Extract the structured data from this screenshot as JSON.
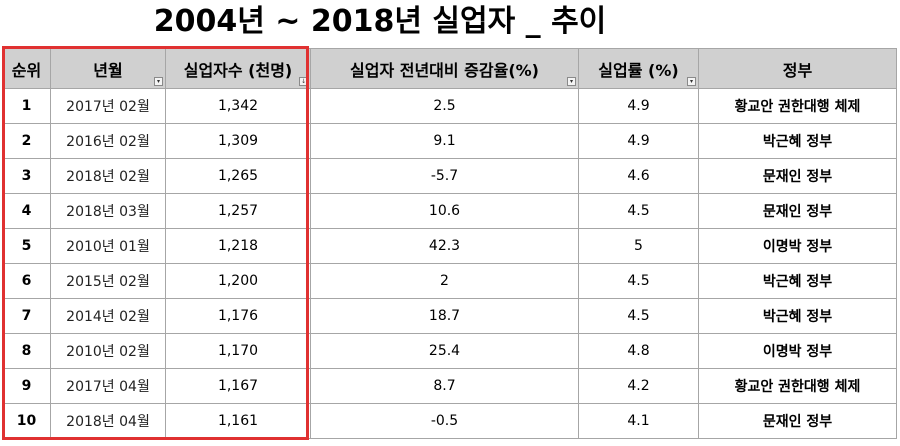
{
  "title": "2004년 ~ 2018년 실업자 _ 추이",
  "columns": [
    "순위",
    "년월",
    "실업자수 (천명)",
    "실업자 전년대비 증감율(%)",
    "실업률 (%)",
    "정부"
  ],
  "rows": [
    {
      "rank": "1",
      "ym": "2017년 02월",
      "count": "1,342",
      "change": "2.5",
      "rate": "4.9",
      "gov": "황교안 권한대행 체제"
    },
    {
      "rank": "2",
      "ym": "2016년 02월",
      "count": "1,309",
      "change": "9.1",
      "rate": "4.9",
      "gov": "박근혜 정부"
    },
    {
      "rank": "3",
      "ym": "2018년 02월",
      "count": "1,265",
      "change": "-5.7",
      "rate": "4.6",
      "gov": "문재인 정부"
    },
    {
      "rank": "4",
      "ym": "2018년 03월",
      "count": "1,257",
      "change": "10.6",
      "rate": "4.5",
      "gov": "문재인 정부"
    },
    {
      "rank": "5",
      "ym": "2010년 01월",
      "count": "1,218",
      "change": "42.3",
      "rate": "5",
      "gov": "이명박 정부"
    },
    {
      "rank": "6",
      "ym": "2015년 02월",
      "count": "1,200",
      "change": "2",
      "rate": "4.5",
      "gov": "박근혜 정부"
    },
    {
      "rank": "7",
      "ym": "2014년 02월",
      "count": "1,176",
      "change": "18.7",
      "rate": "4.5",
      "gov": "박근혜 정부"
    },
    {
      "rank": "8",
      "ym": "2010년 02월",
      "count": "1,170",
      "change": "25.4",
      "rate": "4.8",
      "gov": "이명박 정부"
    },
    {
      "rank": "9",
      "ym": "2017년 04월",
      "count": "1,167",
      "change": "8.7",
      "rate": "4.2",
      "gov": "황교안 권한대행 체제"
    },
    {
      "rank": "10",
      "ym": "2018년 04월",
      "count": "1,161",
      "change": "-0.5",
      "rate": "4.1",
      "gov": "문재인 정부"
    }
  ],
  "icons": {
    "filter": "filter-dropdown-icon",
    "sort": "sort-desc-icon"
  },
  "colors": {
    "highlight": "#e03131",
    "header_bg": "#d0d0d0",
    "border": "#a6a6a6"
  }
}
